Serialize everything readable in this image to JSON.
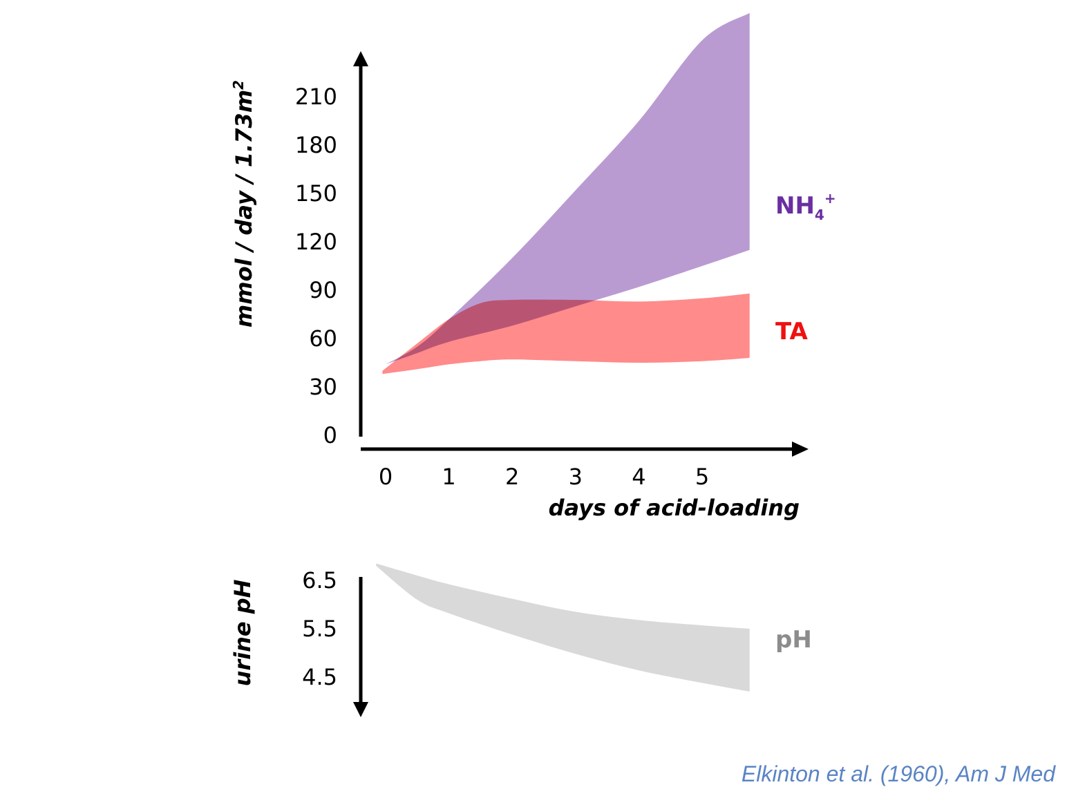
{
  "chart_data": [
    {
      "type": "area",
      "title": "",
      "xlabel": "days of acid-loading",
      "ylabel": "mmol / day / 1.73m²",
      "ylabel_main": "mmol / day / 1.73m",
      "ylabel_sup": "2",
      "x_ticks": [
        "0",
        "1",
        "2",
        "3",
        "4",
        "5"
      ],
      "y_ticks": [
        "0",
        "30",
        "60",
        "90",
        "120",
        "150",
        "180",
        "210"
      ],
      "xlim": [
        0,
        5.8
      ],
      "ylim": [
        0,
        220
      ],
      "series": [
        {
          "name": "NH4+",
          "label_main": "NH",
          "label_sub": "4",
          "label_sup": "+",
          "color": "#b99bd2",
          "label_color": "#6a2fa0",
          "x": [
            0,
            0.5,
            1,
            2,
            3,
            4,
            5,
            5.75
          ],
          "upper": [
            44,
            55,
            72,
            110,
            152,
            195,
            245,
            262
          ],
          "lower": [
            44,
            51,
            58,
            68,
            80,
            92,
            105,
            115
          ]
        },
        {
          "name": "TA",
          "label_main": "TA",
          "color": "#ff8585",
          "label_color": "#ee1111",
          "x": [
            -0.05,
            0.5,
            1,
            1.5,
            2,
            3,
            4,
            5,
            5.75
          ],
          "upper": [
            40,
            57,
            72,
            82,
            84,
            84,
            83,
            85,
            88
          ],
          "lower": [
            38,
            41,
            44,
            46,
            47,
            46,
            45,
            46,
            48
          ]
        }
      ]
    },
    {
      "type": "area",
      "title": "",
      "ylabel": "urine pH",
      "y_ticks": [
        "6.5",
        "5.5",
        "4.5"
      ],
      "ylim": [
        3.9,
        6.8
      ],
      "xlim": [
        0,
        5.8
      ],
      "series": [
        {
          "name": "pH",
          "label_main": "pH",
          "color": "#d9d9d9",
          "label_color": "#8c8c8c",
          "x": [
            -0.15,
            0.5,
            1,
            2,
            3,
            4,
            5,
            5.75
          ],
          "upper": [
            6.85,
            6.6,
            6.42,
            6.12,
            5.85,
            5.68,
            5.57,
            5.5
          ],
          "lower": [
            6.8,
            6.1,
            5.82,
            5.38,
            4.98,
            4.64,
            4.38,
            4.2
          ]
        }
      ]
    }
  ],
  "citation": "Elkinton et al. (1960), Am J Med"
}
